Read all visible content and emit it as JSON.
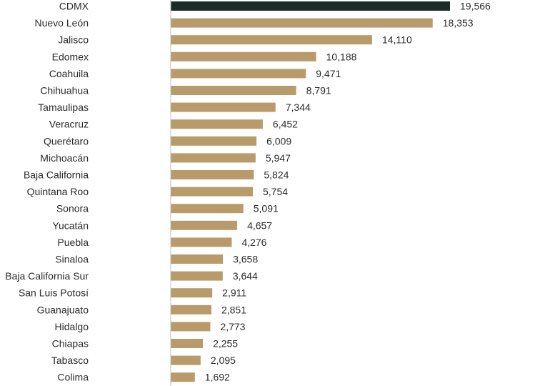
{
  "chart_data": {
    "type": "bar",
    "orientation": "horizontal",
    "title": "",
    "xlabel": "",
    "ylabel": "",
    "grid": false,
    "xlim": [
      0,
      22000
    ],
    "categories": [
      "CDMX",
      "Nuevo León",
      "Jalisco",
      "Edomex",
      "Coahuila",
      "Chihuahua",
      "Tamaulipas",
      "Veracruz",
      "Querétaro",
      "Michoacán",
      "Baja California",
      "Quintana Roo",
      "Sonora",
      "Yucatán",
      "Puebla",
      "Sinaloa",
      "Baja California Sur",
      "San Luis Potosí",
      "Guanajuato",
      "Hidalgo",
      "Chiapas",
      "Tabasco",
      "Colima"
    ],
    "values": [
      19566,
      18353,
      14110,
      10188,
      9471,
      8791,
      7344,
      6452,
      6009,
      5947,
      5824,
      5754,
      5091,
      4657,
      4276,
      3658,
      3644,
      2911,
      2851,
      2773,
      2255,
      2095,
      1692
    ],
    "value_labels": [
      "19,566",
      "18,353",
      "14,110",
      "10,188",
      "9,471",
      "8,791",
      "7,344",
      "6,452",
      "6,009",
      "5,947",
      "5,824",
      "5,754",
      "5,091",
      "4,657",
      "4,276",
      "3,658",
      "3,644",
      "2,911",
      "2,851",
      "2,773",
      "2,255",
      "2,095",
      "1,692"
    ],
    "highlight_index": 0,
    "colors": {
      "bar": "#b99b6b",
      "highlight": "#1c2b28",
      "axis": "#bfbfbf",
      "text": "#2b2b2b"
    }
  }
}
